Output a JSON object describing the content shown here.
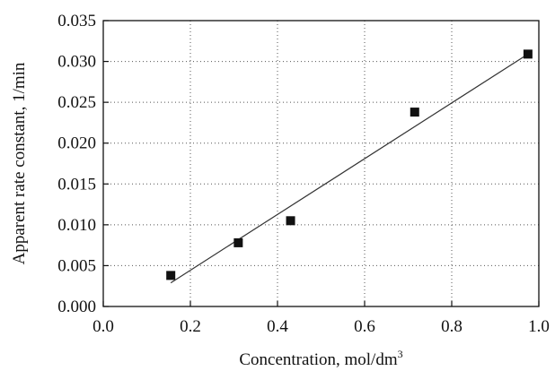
{
  "chart_data": {
    "type": "scatter",
    "title": "",
    "xlabel": "Concentration, mol/dm",
    "xlabel_superscript": "3",
    "ylabel": "Apparent rate constant, 1/min",
    "xlim": [
      0.0,
      1.0
    ],
    "ylim": [
      0.0,
      0.035
    ],
    "x_ticks": [
      "0.0",
      "0.2",
      "0.4",
      "0.6",
      "0.8",
      "1.0"
    ],
    "y_ticks": [
      "0.000",
      "0.005",
      "0.010",
      "0.015",
      "0.020",
      "0.025",
      "0.030",
      "0.035"
    ],
    "grid": true,
    "legend": "none",
    "series": [
      {
        "marker": "square",
        "color": "#111111",
        "points": [
          {
            "x": 0.155,
            "y": 0.0038
          },
          {
            "x": 0.31,
            "y": 0.0078
          },
          {
            "x": 0.43,
            "y": 0.0105
          },
          {
            "x": 0.715,
            "y": 0.0238
          },
          {
            "x": 0.975,
            "y": 0.0309
          }
        ]
      }
    ],
    "trendline": {
      "type": "linear",
      "from": {
        "x": 0.155,
        "y": 0.0029
      },
      "to": {
        "x": 0.975,
        "y": 0.0309
      }
    }
  }
}
